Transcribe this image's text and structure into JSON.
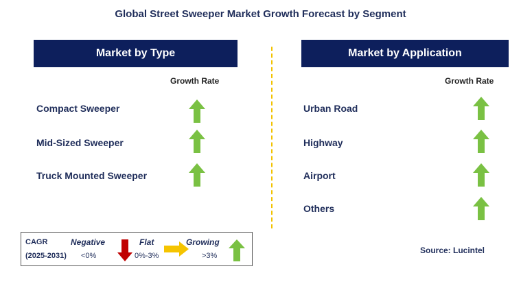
{
  "title": "Global Street Sweeper Market Growth Forecast by Segment",
  "left_panel": {
    "header": "Market by Type",
    "growth_rate_label": "Growth Rate",
    "items": [
      {
        "label": "Compact Sweeper",
        "trend": "growing"
      },
      {
        "label": "Mid-Sized Sweeper",
        "trend": "growing"
      },
      {
        "label": "Truck Mounted Sweeper",
        "trend": "growing"
      }
    ]
  },
  "right_panel": {
    "header": "Market by Application",
    "growth_rate_label": "Growth Rate",
    "items": [
      {
        "label": "Urban Road",
        "trend": "growing"
      },
      {
        "label": "Highway",
        "trend": "growing"
      },
      {
        "label": "Airport",
        "trend": "growing"
      },
      {
        "label": "Others",
        "trend": "growing"
      }
    ]
  },
  "legend": {
    "cagr_label": "CAGR",
    "period": "(2025-2031)",
    "negative": {
      "label": "Negative",
      "range": "<0%"
    },
    "flat": {
      "label": "Flat",
      "range": "0%-3%"
    },
    "growing": {
      "label": "Growing",
      "range": ">3%"
    }
  },
  "source": "Source: Lucintel",
  "colors": {
    "header_bg": "#0d1f5c",
    "growing": "#7ac143",
    "negative": "#c00000",
    "flat": "#f5c400",
    "divider": "#f2c200"
  }
}
